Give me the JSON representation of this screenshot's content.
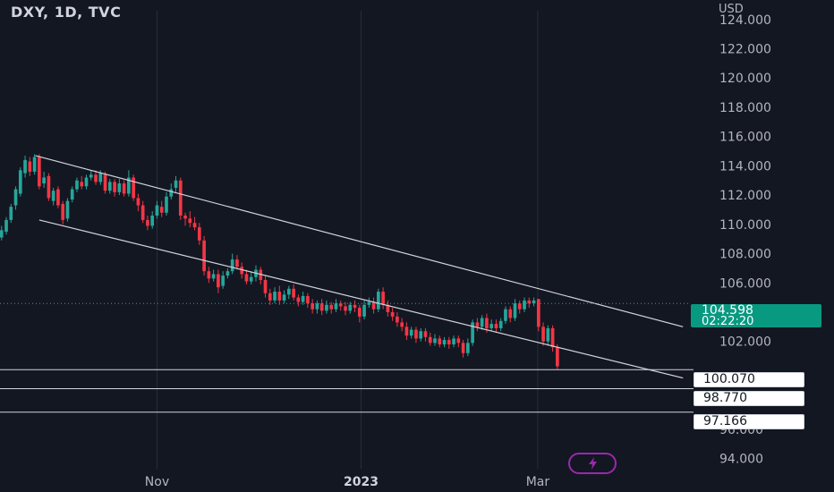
{
  "header": {
    "title": "DXY, 1D, TVC",
    "currency": "USD"
  },
  "price_badge": {
    "price": "104.598",
    "countdown": "02:22:20"
  },
  "level_badges": [
    "100.070",
    "98.770",
    "97.166"
  ],
  "colors": {
    "background": "#131722",
    "up": "#26a69a",
    "down": "#f23645",
    "channel": "#d1d4dc",
    "price_badge": "#089981",
    "flash_ring": "#9c27b0"
  },
  "icons": {
    "flash": "lightning-icon"
  },
  "chart_data": {
    "type": "candlestick",
    "title": "DXY, 1D, TVC",
    "currency": "USD",
    "y_ticks": [
      "124.000",
      "122.000",
      "120.000",
      "118.000",
      "116.000",
      "114.000",
      "112.000",
      "110.000",
      "108.000",
      "106.000",
      "102.000",
      "98.000",
      "96.000",
      "94.000"
    ],
    "x_ticks": [
      {
        "label": "Nov",
        "x": 0.2,
        "bold": false
      },
      {
        "label": "2023",
        "x": 2.8,
        "bold": true
      },
      {
        "label": "Mar",
        "x": 5.05,
        "bold": false
      }
    ],
    "x_range": [
      -1.8,
      7.0
    ],
    "y_range": [
      93.3,
      124.6
    ],
    "grid_verticals": [
      0.2,
      2.8,
      5.05
    ],
    "last_price": 104.598,
    "channel": {
      "upper": [
        [
          -1.35,
          114.7
        ],
        [
          6.9,
          103.0
        ]
      ],
      "lower": [
        [
          -1.3,
          110.3
        ],
        [
          6.9,
          99.5
        ]
      ]
    },
    "levels": [
      100.07,
      98.77,
      97.166
    ],
    "candles": [
      [
        -1.78,
        109.1,
        109.6,
        109.9,
        108.9
      ],
      [
        -1.72,
        109.5,
        110.3,
        110.5,
        109.3
      ],
      [
        -1.66,
        110.3,
        111.2,
        111.4,
        110.1
      ],
      [
        -1.6,
        111.3,
        112.4,
        112.6,
        111.0
      ],
      [
        -1.54,
        112.1,
        113.7,
        113.9,
        111.9
      ],
      [
        -1.48,
        113.5,
        114.4,
        114.7,
        113.2
      ],
      [
        -1.42,
        114.3,
        113.6,
        114.6,
        113.3
      ],
      [
        -1.36,
        113.6,
        114.6,
        114.8,
        113.4
      ],
      [
        -1.3,
        114.6,
        112.6,
        114.8,
        112.4
      ],
      [
        -1.24,
        112.8,
        113.2,
        113.6,
        112.5
      ],
      [
        -1.18,
        113.3,
        111.8,
        113.5,
        111.6
      ],
      [
        -1.12,
        111.6,
        112.3,
        112.5,
        111.3
      ],
      [
        -1.06,
        112.4,
        111.3,
        112.6,
        111.1
      ],
      [
        -1.0,
        111.4,
        110.3,
        111.6,
        110.0
      ],
      [
        -0.94,
        110.4,
        111.6,
        111.8,
        110.2
      ],
      [
        -0.88,
        111.7,
        112.4,
        112.6,
        111.5
      ],
      [
        -0.82,
        112.4,
        113.0,
        113.2,
        112.2
      ],
      [
        -0.76,
        112.9,
        112.6,
        113.3,
        112.4
      ],
      [
        -0.7,
        112.6,
        113.2,
        113.4,
        112.4
      ],
      [
        -0.64,
        113.2,
        113.4,
        113.7,
        113.0
      ],
      [
        -0.58,
        113.4,
        112.9,
        113.7,
        112.7
      ],
      [
        -0.52,
        112.9,
        113.5,
        113.7,
        112.7
      ],
      [
        -0.46,
        113.4,
        112.3,
        113.6,
        112.1
      ],
      [
        -0.4,
        112.3,
        112.9,
        113.1,
        112.1
      ],
      [
        -0.34,
        112.9,
        112.2,
        113.1,
        111.9
      ],
      [
        -0.28,
        112.2,
        112.8,
        113.1,
        112.0
      ],
      [
        -0.22,
        112.8,
        112.1,
        113.0,
        111.9
      ],
      [
        -0.16,
        112.1,
        113.2,
        113.7,
        111.9
      ],
      [
        -0.1,
        113.2,
        111.8,
        113.4,
        111.6
      ],
      [
        -0.04,
        111.8,
        111.3,
        112.1,
        110.9
      ],
      [
        0.02,
        111.3,
        110.3,
        111.6,
        110.1
      ],
      [
        0.08,
        110.3,
        109.9,
        110.6,
        109.6
      ],
      [
        0.14,
        109.9,
        110.6,
        110.9,
        109.7
      ],
      [
        0.2,
        110.6,
        111.3,
        111.6,
        110.4
      ],
      [
        0.26,
        111.2,
        110.8,
        111.6,
        110.5
      ],
      [
        0.32,
        110.8,
        111.9,
        112.2,
        110.6
      ],
      [
        0.38,
        111.9,
        112.4,
        112.8,
        111.7
      ],
      [
        0.44,
        112.5,
        113.0,
        113.3,
        112.2
      ],
      [
        0.5,
        113.0,
        110.6,
        113.2,
        110.3
      ],
      [
        0.56,
        110.6,
        110.4,
        110.8,
        109.9
      ],
      [
        0.62,
        110.4,
        110.1,
        110.9,
        109.8
      ],
      [
        0.68,
        110.1,
        109.8,
        110.5,
        109.6
      ],
      [
        0.74,
        109.8,
        108.9,
        110.1,
        108.6
      ],
      [
        0.8,
        108.9,
        106.8,
        109.2,
        106.5
      ],
      [
        0.86,
        106.8,
        106.3,
        107.1,
        106.0
      ],
      [
        0.92,
        106.3,
        106.6,
        106.9,
        106.1
      ],
      [
        0.98,
        106.6,
        105.7,
        106.9,
        105.3
      ],
      [
        1.04,
        105.8,
        106.5,
        106.8,
        105.6
      ],
      [
        1.1,
        106.5,
        106.8,
        107.0,
        106.3
      ],
      [
        1.16,
        106.8,
        107.6,
        108.0,
        106.6
      ],
      [
        1.22,
        107.6,
        107.1,
        107.9,
        106.9
      ],
      [
        1.28,
        107.1,
        106.6,
        107.4,
        106.3
      ],
      [
        1.34,
        106.6,
        106.1,
        106.9,
        105.9
      ],
      [
        1.4,
        106.1,
        106.4,
        106.8,
        105.9
      ],
      [
        1.46,
        106.4,
        106.9,
        107.2,
        106.1
      ],
      [
        1.52,
        106.9,
        106.2,
        107.1,
        105.9
      ],
      [
        1.58,
        106.2,
        105.3,
        106.5,
        105.0
      ],
      [
        1.64,
        105.3,
        104.8,
        105.6,
        104.5
      ],
      [
        1.7,
        104.8,
        105.4,
        105.7,
        104.6
      ],
      [
        1.76,
        105.4,
        104.8,
        105.8,
        104.5
      ],
      [
        1.82,
        104.8,
        105.2,
        105.5,
        104.6
      ],
      [
        1.88,
        105.2,
        105.6,
        105.8,
        104.9
      ],
      [
        1.94,
        105.6,
        105.0,
        105.9,
        104.8
      ],
      [
        2.0,
        105.0,
        104.7,
        105.2,
        104.4
      ],
      [
        2.06,
        104.7,
        105.1,
        105.4,
        104.5
      ],
      [
        2.12,
        105.1,
        104.6,
        105.3,
        104.3
      ],
      [
        2.18,
        104.6,
        104.2,
        104.9,
        103.9
      ],
      [
        2.24,
        104.2,
        104.6,
        104.8,
        103.9
      ],
      [
        2.3,
        104.6,
        104.1,
        104.9,
        103.8
      ],
      [
        2.36,
        104.1,
        104.5,
        104.8,
        103.9
      ],
      [
        2.42,
        104.5,
        104.2,
        104.7,
        103.9
      ],
      [
        2.48,
        104.2,
        104.6,
        104.9,
        104.0
      ],
      [
        2.54,
        104.6,
        104.4,
        104.8,
        104.1
      ],
      [
        2.6,
        104.4,
        104.1,
        104.7,
        103.8
      ],
      [
        2.66,
        104.1,
        104.5,
        104.7,
        103.9
      ],
      [
        2.72,
        104.5,
        104.3,
        104.8,
        104.0
      ],
      [
        2.78,
        104.3,
        103.7,
        104.5,
        103.3
      ],
      [
        2.84,
        103.7,
        104.5,
        104.8,
        103.5
      ],
      [
        2.9,
        104.5,
        104.7,
        105.0,
        104.3
      ],
      [
        2.96,
        104.7,
        104.2,
        105.0,
        103.9
      ],
      [
        3.02,
        104.2,
        105.4,
        105.6,
        104.0
      ],
      [
        3.08,
        105.4,
        104.5,
        105.7,
        104.2
      ],
      [
        3.14,
        104.5,
        104.0,
        104.8,
        103.7
      ],
      [
        3.2,
        104.0,
        103.7,
        104.3,
        103.4
      ],
      [
        3.26,
        103.7,
        103.3,
        104.0,
        103.0
      ],
      [
        3.32,
        103.3,
        103.0,
        103.6,
        102.7
      ],
      [
        3.38,
        103.0,
        102.4,
        103.3,
        102.1
      ],
      [
        3.44,
        102.4,
        102.8,
        103.0,
        102.2
      ],
      [
        3.5,
        102.8,
        102.2,
        103.0,
        101.9
      ],
      [
        3.56,
        102.2,
        102.7,
        102.9,
        102.0
      ],
      [
        3.62,
        102.7,
        102.3,
        102.9,
        102.0
      ],
      [
        3.68,
        102.3,
        101.9,
        102.6,
        101.7
      ],
      [
        3.74,
        101.9,
        102.2,
        102.5,
        101.7
      ],
      [
        3.8,
        102.2,
        101.8,
        102.4,
        101.6
      ],
      [
        3.86,
        101.8,
        102.1,
        102.3,
        101.6
      ],
      [
        3.92,
        102.1,
        101.8,
        102.3,
        101.5
      ],
      [
        3.98,
        101.8,
        102.2,
        102.4,
        101.6
      ],
      [
        4.04,
        102.2,
        101.9,
        102.4,
        101.6
      ],
      [
        4.1,
        101.9,
        101.2,
        102.1,
        100.9
      ],
      [
        4.16,
        101.2,
        101.9,
        102.2,
        101.0
      ],
      [
        4.22,
        101.9,
        103.3,
        103.5,
        101.7
      ],
      [
        4.28,
        103.3,
        103.0,
        103.6,
        102.7
      ],
      [
        4.34,
        103.0,
        103.6,
        103.8,
        102.8
      ],
      [
        4.4,
        103.6,
        102.9,
        103.9,
        102.6
      ],
      [
        4.46,
        102.9,
        103.2,
        103.5,
        102.7
      ],
      [
        4.52,
        103.2,
        102.9,
        103.5,
        102.6
      ],
      [
        4.58,
        102.9,
        103.4,
        103.6,
        102.7
      ],
      [
        4.64,
        103.4,
        104.2,
        104.4,
        103.2
      ],
      [
        4.7,
        104.2,
        103.6,
        104.4,
        103.3
      ],
      [
        4.76,
        103.6,
        104.6,
        104.9,
        103.4
      ],
      [
        4.82,
        104.6,
        104.2,
        104.8,
        103.9
      ],
      [
        4.88,
        104.2,
        104.8,
        105.0,
        104.0
      ],
      [
        4.94,
        104.8,
        104.6,
        105.0,
        104.3
      ],
      [
        5.0,
        104.6,
        104.8,
        105.0,
        104.4
      ],
      [
        5.06,
        104.9,
        103.0,
        104.9,
        102.7
      ],
      [
        5.12,
        103.0,
        102.0,
        103.3,
        101.7
      ],
      [
        5.18,
        102.0,
        102.9,
        103.1,
        101.7
      ],
      [
        5.24,
        102.9,
        101.6,
        103.1,
        101.3
      ],
      [
        5.3,
        101.6,
        100.3,
        101.8,
        100.1
      ]
    ]
  }
}
